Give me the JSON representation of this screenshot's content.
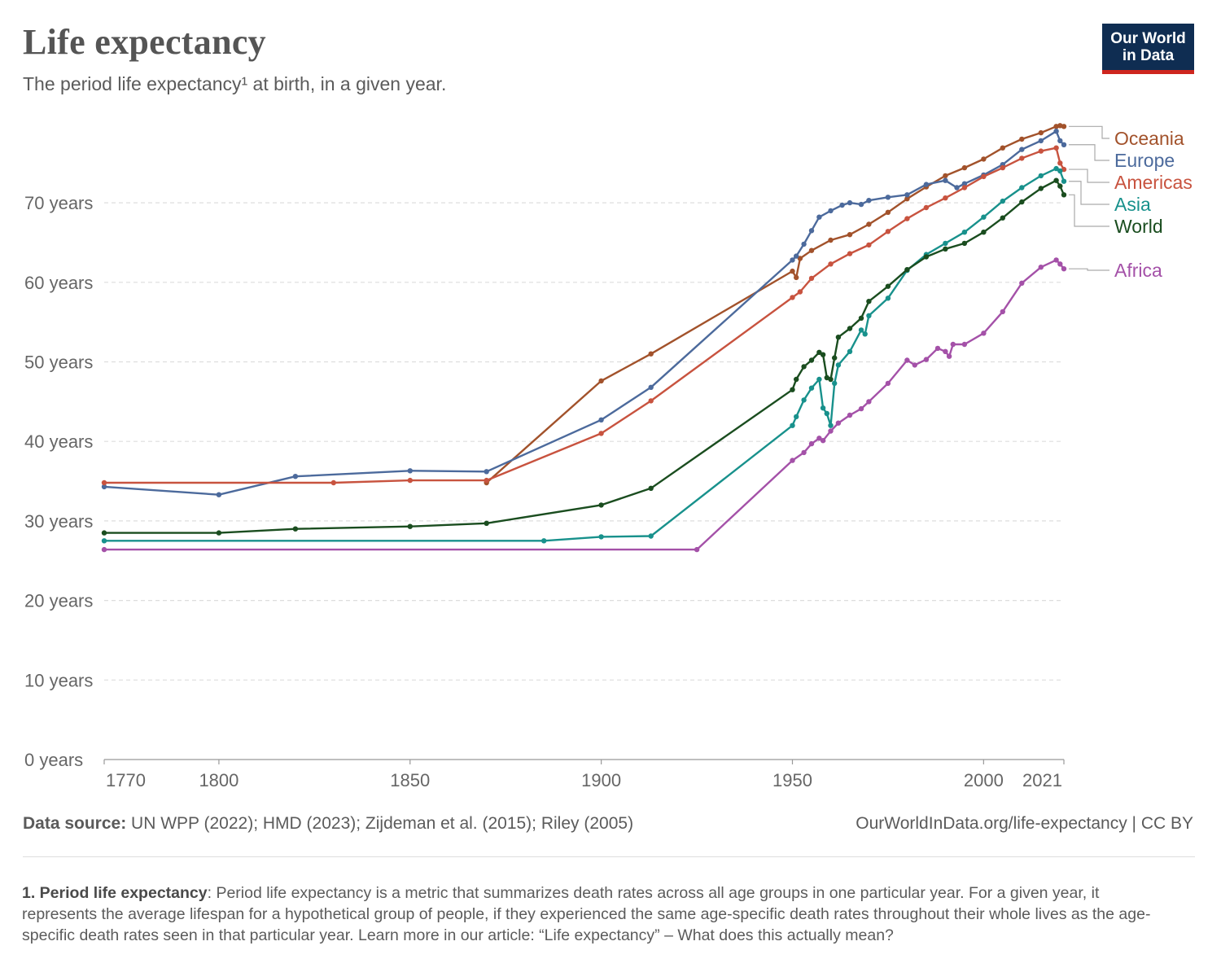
{
  "header": {
    "title": "Life expectancy",
    "subtitle": "The period life expectancy¹ at birth, in a given year."
  },
  "logo": {
    "line1": "Our World",
    "line2": "in Data"
  },
  "footer": {
    "source_label": "Data source:",
    "source_text": " UN WPP (2022); HMD (2023); Zijdeman et al. (2015); Riley (2005)",
    "license": "OurWorldInData.org/life-expectancy | CC BY"
  },
  "footnote": {
    "label": "1. Period life expectancy",
    "text": ": Period life expectancy is a metric that summarizes death rates across all age groups in one particular year. For a given year, it represents the average lifespan for a hypothetical group of people, if they experienced the same age-specific death rates throughout their whole lives as the age-specific death rates seen in that particular year. Learn more in our article: “Life expectancy” – What does this actually mean?"
  },
  "chart_data": {
    "type": "line",
    "xlim": [
      1770,
      2021
    ],
    "ylim": [
      0,
      80
    ],
    "grid": true,
    "y_ticks": [
      {
        "value": 0,
        "label": "0 years"
      },
      {
        "value": 10,
        "label": "10 years"
      },
      {
        "value": 20,
        "label": "20 years"
      },
      {
        "value": 30,
        "label": "30 years"
      },
      {
        "value": 40,
        "label": "40 years"
      },
      {
        "value": 50,
        "label": "50 years"
      },
      {
        "value": 60,
        "label": "60 years"
      },
      {
        "value": 70,
        "label": "70 years"
      }
    ],
    "x_ticks": [
      {
        "value": 1770,
        "label": "1770"
      },
      {
        "value": 1800,
        "label": "1800"
      },
      {
        "value": 1850,
        "label": "1850"
      },
      {
        "value": 1900,
        "label": "1900"
      },
      {
        "value": 1950,
        "label": "1950"
      },
      {
        "value": 2000,
        "label": "2000"
      },
      {
        "value": 2021,
        "label": "2021"
      }
    ],
    "legend_placement": "right",
    "series": [
      {
        "name": "Oceania",
        "color": "#a2522b",
        "points": [
          [
            1870,
            34.8
          ],
          [
            1900,
            47.6
          ],
          [
            1913,
            51.0
          ],
          [
            1950,
            61.4
          ],
          [
            1951,
            60.6
          ],
          [
            1952,
            63.0
          ],
          [
            1955,
            64.0
          ],
          [
            1960,
            65.3
          ],
          [
            1965,
            66.0
          ],
          [
            1970,
            67.3
          ],
          [
            1975,
            68.8
          ],
          [
            1980,
            70.5
          ],
          [
            1985,
            72.0
          ],
          [
            1990,
            73.4
          ],
          [
            1995,
            74.4
          ],
          [
            2000,
            75.5
          ],
          [
            2005,
            76.9
          ],
          [
            2010,
            78.0
          ],
          [
            2015,
            78.8
          ],
          [
            2019,
            79.6
          ],
          [
            2020,
            79.7
          ],
          [
            2021,
            79.6
          ]
        ]
      },
      {
        "name": "Europe",
        "color": "#4c6a9c",
        "points": [
          [
            1770,
            34.3
          ],
          [
            1800,
            33.3
          ],
          [
            1820,
            35.6
          ],
          [
            1850,
            36.3
          ],
          [
            1870,
            36.2
          ],
          [
            1900,
            42.7
          ],
          [
            1913,
            46.8
          ],
          [
            1950,
            62.8
          ],
          [
            1951,
            63.3
          ],
          [
            1953,
            64.8
          ],
          [
            1955,
            66.5
          ],
          [
            1957,
            68.2
          ],
          [
            1960,
            69.0
          ],
          [
            1963,
            69.7
          ],
          [
            1965,
            70.0
          ],
          [
            1968,
            69.8
          ],
          [
            1970,
            70.3
          ],
          [
            1975,
            70.7
          ],
          [
            1980,
            71.0
          ],
          [
            1985,
            72.3
          ],
          [
            1990,
            72.8
          ],
          [
            1993,
            71.9
          ],
          [
            1995,
            72.4
          ],
          [
            2000,
            73.5
          ],
          [
            2005,
            74.8
          ],
          [
            2010,
            76.7
          ],
          [
            2015,
            77.8
          ],
          [
            2019,
            79.0
          ],
          [
            2020,
            77.8
          ],
          [
            2021,
            77.3
          ]
        ]
      },
      {
        "name": "Americas",
        "color": "#c8533f",
        "points": [
          [
            1770,
            34.8
          ],
          [
            1830,
            34.8
          ],
          [
            1850,
            35.1
          ],
          [
            1870,
            35.1
          ],
          [
            1900,
            41.0
          ],
          [
            1913,
            45.1
          ],
          [
            1950,
            58.1
          ],
          [
            1952,
            58.8
          ],
          [
            1955,
            60.5
          ],
          [
            1960,
            62.3
          ],
          [
            1965,
            63.6
          ],
          [
            1970,
            64.7
          ],
          [
            1975,
            66.4
          ],
          [
            1980,
            68.0
          ],
          [
            1985,
            69.4
          ],
          [
            1990,
            70.6
          ],
          [
            1995,
            71.9
          ],
          [
            2000,
            73.3
          ],
          [
            2005,
            74.4
          ],
          [
            2010,
            75.6
          ],
          [
            2015,
            76.5
          ],
          [
            2019,
            76.9
          ],
          [
            2020,
            75.0
          ],
          [
            2021,
            74.2
          ]
        ]
      },
      {
        "name": "Asia",
        "color": "#18918c",
        "points": [
          [
            1770,
            27.5
          ],
          [
            1885,
            27.5
          ],
          [
            1900,
            28.0
          ],
          [
            1913,
            28.1
          ],
          [
            1950,
            42.0
          ],
          [
            1951,
            43.1
          ],
          [
            1953,
            45.2
          ],
          [
            1955,
            46.7
          ],
          [
            1957,
            47.8
          ],
          [
            1958,
            44.2
          ],
          [
            1959,
            43.5
          ],
          [
            1960,
            42.0
          ],
          [
            1961,
            47.3
          ],
          [
            1962,
            49.6
          ],
          [
            1965,
            51.3
          ],
          [
            1968,
            54.0
          ],
          [
            1969,
            53.5
          ],
          [
            1970,
            55.8
          ],
          [
            1975,
            58.0
          ],
          [
            1980,
            61.5
          ],
          [
            1985,
            63.5
          ],
          [
            1990,
            64.9
          ],
          [
            1995,
            66.3
          ],
          [
            2000,
            68.2
          ],
          [
            2005,
            70.2
          ],
          [
            2010,
            71.9
          ],
          [
            2015,
            73.4
          ],
          [
            2019,
            74.3
          ],
          [
            2020,
            74.0
          ],
          [
            2021,
            72.7
          ]
        ]
      },
      {
        "name": "World",
        "color": "#1a4d1f",
        "points": [
          [
            1770,
            28.5
          ],
          [
            1800,
            28.5
          ],
          [
            1820,
            29.0
          ],
          [
            1850,
            29.3
          ],
          [
            1870,
            29.7
          ],
          [
            1900,
            32.0
          ],
          [
            1913,
            34.1
          ],
          [
            1950,
            46.5
          ],
          [
            1951,
            47.8
          ],
          [
            1953,
            49.4
          ],
          [
            1955,
            50.2
          ],
          [
            1957,
            51.2
          ],
          [
            1958,
            50.9
          ],
          [
            1959,
            48.0
          ],
          [
            1960,
            47.8
          ],
          [
            1961,
            50.5
          ],
          [
            1962,
            53.1
          ],
          [
            1965,
            54.2
          ],
          [
            1968,
            55.5
          ],
          [
            1970,
            57.6
          ],
          [
            1975,
            59.5
          ],
          [
            1980,
            61.6
          ],
          [
            1985,
            63.2
          ],
          [
            1990,
            64.2
          ],
          [
            1995,
            64.9
          ],
          [
            2000,
            66.3
          ],
          [
            2005,
            68.1
          ],
          [
            2010,
            70.1
          ],
          [
            2015,
            71.8
          ],
          [
            2019,
            72.8
          ],
          [
            2020,
            72.1
          ],
          [
            2021,
            71.0
          ]
        ]
      },
      {
        "name": "Africa",
        "color": "#a451a8",
        "points": [
          [
            1770,
            26.4
          ],
          [
            1925,
            26.4
          ],
          [
            1950,
            37.6
          ],
          [
            1953,
            38.6
          ],
          [
            1955,
            39.7
          ],
          [
            1957,
            40.4
          ],
          [
            1958,
            40.1
          ],
          [
            1960,
            41.3
          ],
          [
            1962,
            42.3
          ],
          [
            1965,
            43.3
          ],
          [
            1968,
            44.1
          ],
          [
            1970,
            45.0
          ],
          [
            1975,
            47.3
          ],
          [
            1980,
            50.2
          ],
          [
            1982,
            49.6
          ],
          [
            1985,
            50.3
          ],
          [
            1988,
            51.7
          ],
          [
            1990,
            51.3
          ],
          [
            1991,
            50.7
          ],
          [
            1992,
            52.2
          ],
          [
            1995,
            52.2
          ],
          [
            2000,
            53.6
          ],
          [
            2005,
            56.3
          ],
          [
            2010,
            59.9
          ],
          [
            2015,
            61.9
          ],
          [
            2019,
            62.8
          ],
          [
            2020,
            62.3
          ],
          [
            2021,
            61.7
          ]
        ]
      }
    ]
  }
}
